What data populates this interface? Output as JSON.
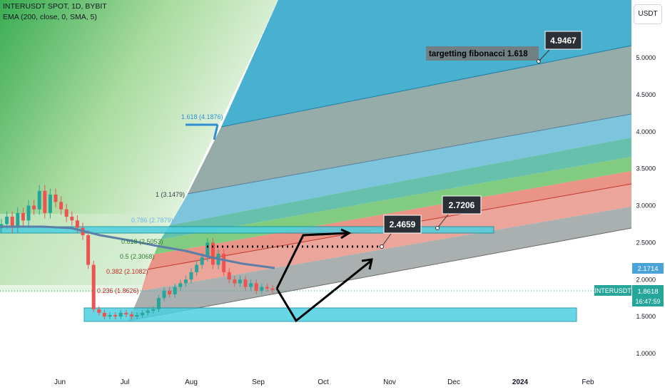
{
  "header": {
    "symbol_line": "INTERUSDT SPOT, 1D, BYBIT",
    "indicator_line": "EMA (200, close, 0, SMA, 5)"
  },
  "axis": {
    "currency_button": "USDT",
    "price_ticks": [
      "5.0000",
      "4.5000",
      "4.0000",
      "3.5000",
      "3.0000",
      "2.5000",
      "2.0000",
      "1.5000",
      "1.0000"
    ],
    "time_ticks": [
      "Jun",
      "Jul",
      "Aug",
      "Sep",
      "Oct",
      "Nov",
      "Dec",
      "2024",
      "Feb"
    ],
    "price_markers": [
      {
        "label": "",
        "value": "2.1714",
        "color": "#4aa3d8"
      },
      {
        "label": "INTERUSDT",
        "value": "1.8618",
        "color": "#26a69a"
      },
      {
        "label": "",
        "value": "16:47:59",
        "color": "#26a69a"
      }
    ]
  },
  "fib_levels": [
    {
      "label": "1.618 (4.1876)",
      "color": "#2f8fd6"
    },
    {
      "label": "1 (3.1479)",
      "color": "#787b86"
    },
    {
      "label": "0.786 (2.7879)",
      "color": "#6fb8e6"
    },
    {
      "label": "0.618 (2.5053)",
      "color": "#4caf50"
    },
    {
      "label": "0.5 (2.3068)",
      "color": "#4caf50"
    },
    {
      "label": "0.382 (2.1082)",
      "color": "#e53935"
    },
    {
      "label": "0.236 (1.8626)",
      "color": "#e53935"
    }
  ],
  "annotations": {
    "target_text": "targetting fibonacci 1.618",
    "callouts": [
      "4.9467",
      "2.4659",
      "2.7206"
    ]
  },
  "colors": {
    "up": "#26a69a",
    "down": "#ef5350",
    "ema": "#5b7fa6",
    "zone": "#4dd0e1",
    "accent": "#2962ff"
  },
  "chart_data": {
    "type": "candlestick",
    "title": "INTERUSDT SPOT, 1D, BYBIT",
    "xlabel": "",
    "ylabel": "",
    "ylim": [
      0.9,
      5.4
    ],
    "x_ticks": [
      "Jun",
      "Jul",
      "Aug",
      "Sep",
      "Oct",
      "Nov",
      "Dec",
      "2024",
      "Feb"
    ],
    "close_approx": [
      2.75,
      2.85,
      2.7,
      2.9,
      2.8,
      3.0,
      2.95,
      3.2,
      2.9,
      3.15,
      3.05,
      2.95,
      2.85,
      2.8,
      2.7,
      2.6,
      2.2,
      1.6,
      1.55,
      1.5,
      1.52,
      1.5,
      1.55,
      1.53,
      1.5,
      1.52,
      1.55,
      1.58,
      1.6,
      1.75,
      1.85,
      1.8,
      1.9,
      1.95,
      2.0,
      2.1,
      2.2,
      2.3,
      2.5,
      2.2,
      2.35,
      2.1,
      2.0,
      1.95,
      2.0,
      1.9,
      1.95,
      1.85,
      1.9,
      1.88,
      1.86
    ],
    "last_price": 1.8618,
    "ema_last": 2.1714,
    "fib_extension": {
      "0.236": 1.8626,
      "0.382": 2.1082,
      "0.5": 2.3068,
      "0.618": 2.5053,
      "0.786": 2.7879,
      "1": 3.1479,
      "1.618": 4.1876
    },
    "targets": [
      2.4659,
      2.7206,
      4.9467
    ]
  }
}
